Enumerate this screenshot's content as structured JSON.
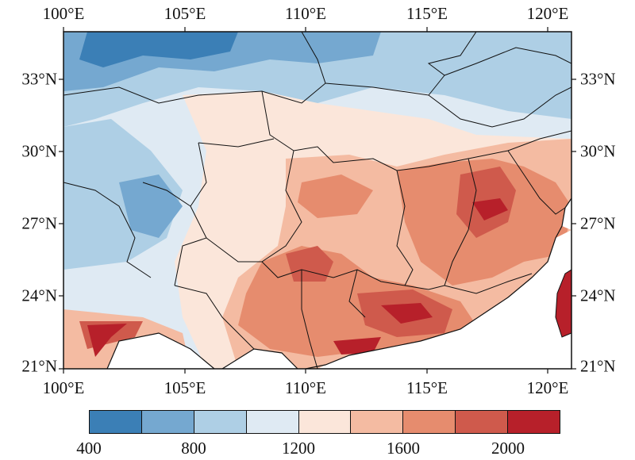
{
  "map": {
    "lon_ticks": [
      "100°E",
      "105°E",
      "110°E",
      "115°E",
      "120°E"
    ],
    "lat_ticks": [
      "33°N",
      "30°N",
      "27°N",
      "24°N",
      "21°N"
    ],
    "extent": {
      "lon": [
        100,
        121
      ],
      "lat": [
        21,
        35
      ]
    }
  },
  "colorbar": {
    "labels": [
      "400",
      "800",
      "1200",
      "1600",
      "2000"
    ],
    "colors": [
      "#3b7fb6",
      "#75a8d0",
      "#aecfe5",
      "#dfeaf3",
      "#fbe6da",
      "#f4bba2",
      "#e68c6e",
      "#cf5a4c",
      "#b7202a"
    ]
  }
}
